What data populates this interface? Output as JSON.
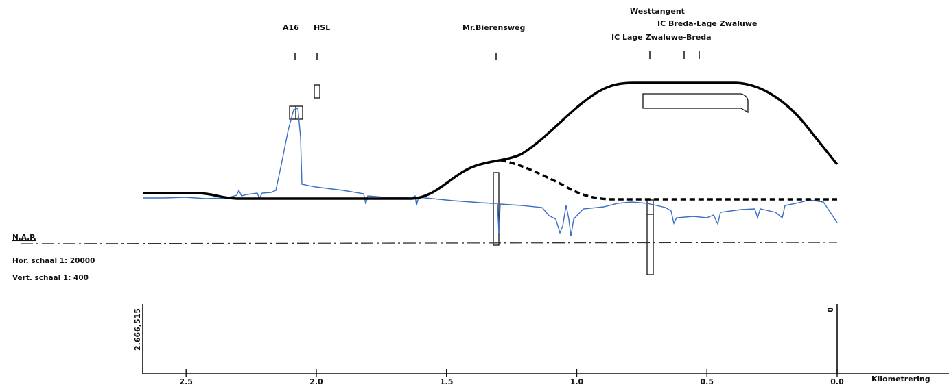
{
  "labels": {
    "a16": "A16",
    "hsl": "HSL",
    "bierensweg": "Mr.Bierensweg",
    "westtangent": "Westtangent",
    "ic_breda_lage": "IC Breda-Lage Zwaluwe",
    "ic_lage_breda": "IC Lage Zwaluwe-Breda"
  },
  "legend": {
    "nap": "N.A.P.",
    "hor_scale": "Hor.  schaal 1: 20000",
    "vert_scale": "Vert.  schaal 1:  400"
  },
  "station_start": "2.666,515",
  "station_end": "0",
  "axis_title": "Kilometrering",
  "colors": {
    "profile": "#000000",
    "terrain": "#3a6fc4",
    "nap_line": "#333333"
  },
  "chart_data": {
    "type": "line",
    "xlabel": "Kilometrering",
    "xlim": [
      2.666515,
      0
    ],
    "x_ticks": [
      2.5,
      2.0,
      1.5,
      1.0,
      0.5,
      0.0
    ],
    "x_tick_labels": [
      "2.5",
      "2.0",
      "1.5",
      "1.0",
      "0.5",
      "0.0"
    ],
    "crossings": [
      {
        "name": "A16",
        "km": 2.08
      },
      {
        "name": "HSL",
        "km": 2.0
      },
      {
        "name": "Mr.Bierensweg",
        "km": 1.3
      },
      {
        "name": "Westtangent",
        "km": 0.72
      },
      {
        "name": "IC Lage Zwaluwe-Breda",
        "km": 0.58
      },
      {
        "name": "IC Breda-Lage Zwaluwe",
        "km": 0.52
      }
    ]
  }
}
